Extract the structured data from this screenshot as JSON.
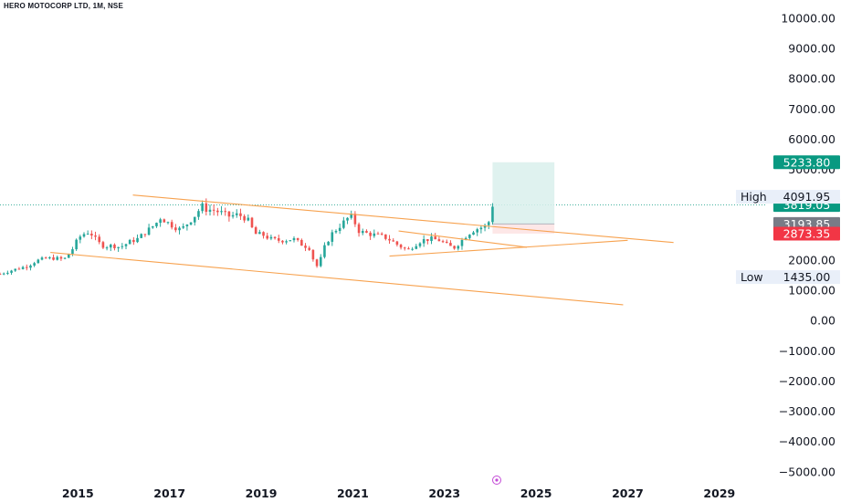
{
  "header": {
    "symbol_line": "HERO MOTOCORP LTD, 1M, NSE"
  },
  "colors": {
    "up": "#26a69a",
    "down": "#ef5350",
    "trendline": "#f7a24f",
    "target_zone": "#d9f0ec",
    "stop_zone": "#fde4e4",
    "last_price_tag": "#089981",
    "entry_tag": "#787b86",
    "stop_tag": "#f23645",
    "hl_label_bg": "#e9eff9"
  },
  "chart_data": {
    "type": "candlestick",
    "title": "HERO MOTOCORP LTD, 1M, NSE",
    "y_ticks": [
      10000,
      9000,
      8000,
      7000,
      6000,
      5000,
      4000,
      3000,
      2000,
      1000,
      0,
      -1000,
      -2000,
      -3000,
      -4000,
      -5000
    ],
    "y_tick_labels": [
      "10000.00",
      "9000.00",
      "8000.00",
      "7000.00",
      "6000.00",
      "5000.00",
      "4000.00",
      "3000.00",
      "2000.00",
      "1000.00",
      "0.00",
      "−1000.00",
      "−2000.00",
      "−3000.00",
      "−4000.00",
      "−5000.00"
    ],
    "x_tick_labels": [
      "2015",
      "2017",
      "2019",
      "2021",
      "2023",
      "2025",
      "2027",
      "2029"
    ],
    "x_tick_years": [
      2015,
      2017,
      2019,
      2021,
      2023,
      2025,
      2027,
      2029
    ],
    "x_range": [
      2013.3,
      2030.0
    ],
    "y_range": [
      -5400,
      10600
    ],
    "price_path": [
      [
        2013.3,
        1540
      ],
      [
        2013.6,
        1680
      ],
      [
        2013.9,
        1800
      ],
      [
        2014.1,
        1980
      ],
      [
        2014.3,
        2050
      ],
      [
        2014.5,
        2060
      ],
      [
        2014.7,
        2020
      ],
      [
        2014.9,
        2400
      ],
      [
        2015.0,
        2700
      ],
      [
        2015.1,
        2850
      ],
      [
        2015.2,
        2900
      ],
      [
        2015.25,
        2950
      ],
      [
        2015.35,
        2750
      ],
      [
        2015.5,
        2500
      ],
      [
        2015.6,
        2450
      ],
      [
        2015.75,
        2480
      ],
      [
        2015.9,
        2430
      ],
      [
        2016.0,
        2480
      ],
      [
        2016.1,
        2580
      ],
      [
        2016.3,
        2700
      ],
      [
        2016.5,
        2950
      ],
      [
        2016.7,
        3200
      ],
      [
        2016.8,
        3400
      ],
      [
        2016.9,
        3300
      ],
      [
        2017.0,
        3200
      ],
      [
        2017.1,
        3100
      ],
      [
        2017.25,
        3000
      ],
      [
        2017.45,
        3300
      ],
      [
        2017.6,
        3550
      ],
      [
        2017.7,
        3800
      ],
      [
        2017.8,
        3680
      ],
      [
        2017.95,
        3650
      ],
      [
        2018.1,
        3580
      ],
      [
        2018.3,
        3450
      ],
      [
        2018.5,
        3500
      ],
      [
        2018.7,
        3350
      ],
      [
        2018.8,
        3050
      ],
      [
        2018.9,
        2820
      ],
      [
        2019.0,
        2860
      ],
      [
        2019.2,
        2700
      ],
      [
        2019.35,
        2650
      ],
      [
        2019.5,
        2650
      ],
      [
        2019.7,
        2700
      ],
      [
        2019.9,
        2500
      ],
      [
        2020.05,
        2400
      ],
      [
        2020.2,
        1750
      ],
      [
        2020.3,
        2050
      ],
      [
        2020.4,
        2500
      ],
      [
        2020.55,
        2880
      ],
      [
        2020.7,
        3100
      ],
      [
        2020.8,
        3250
      ],
      [
        2020.9,
        3400
      ],
      [
        2021.0,
        3450
      ],
      [
        2021.1,
        2980
      ],
      [
        2021.25,
        2900
      ],
      [
        2021.4,
        2850
      ],
      [
        2021.6,
        2800
      ],
      [
        2021.75,
        2720
      ],
      [
        2021.9,
        2580
      ],
      [
        2022.0,
        2480
      ],
      [
        2022.1,
        2400
      ],
      [
        2022.2,
        2320
      ],
      [
        2022.35,
        2500
      ],
      [
        2022.5,
        2650
      ],
      [
        2022.7,
        2700
      ],
      [
        2022.9,
        2650
      ],
      [
        2023.05,
        2500
      ],
      [
        2023.2,
        2390
      ],
      [
        2023.35,
        2600
      ],
      [
        2023.5,
        2850
      ],
      [
        2023.65,
        3000
      ],
      [
        2023.75,
        3050
      ],
      [
        2023.85,
        3100
      ],
      [
        2023.95,
        3150
      ],
      [
        2024.05,
        3819.05
      ]
    ],
    "tags": [
      {
        "label": "5233.80",
        "value": 5233.8,
        "kind": "target"
      },
      {
        "label": "3819.05",
        "value": 3819.05,
        "kind": "last"
      },
      {
        "label": "3193.85",
        "value": 3193.85,
        "kind": "entry"
      },
      {
        "label": "2873.35",
        "value": 2873.35,
        "kind": "stop"
      }
    ],
    "high": {
      "label": "High",
      "value_label": "4091.95",
      "value": 4091.95
    },
    "low": {
      "label": "Low",
      "value_label": "1435.00",
      "value": 1435.0
    },
    "last_price": 3819.05,
    "trendlines": [
      {
        "x1": 2016.2,
        "y1": 4150,
        "x2": 2028.0,
        "y2": 2580
      },
      {
        "x1": 2014.4,
        "y1": 2250,
        "x2": 2026.9,
        "y2": 520
      },
      {
        "x1": 2021.8,
        "y1": 2130,
        "x2": 2027.0,
        "y2": 2650
      },
      {
        "x1": 2022.0,
        "y1": 2960,
        "x2": 2024.8,
        "y2": 2420
      }
    ],
    "position": {
      "x_start": 2024.05,
      "x_end": 2025.4,
      "entry": 3193.85,
      "target": 5233.8,
      "stop": 2873.35
    }
  }
}
